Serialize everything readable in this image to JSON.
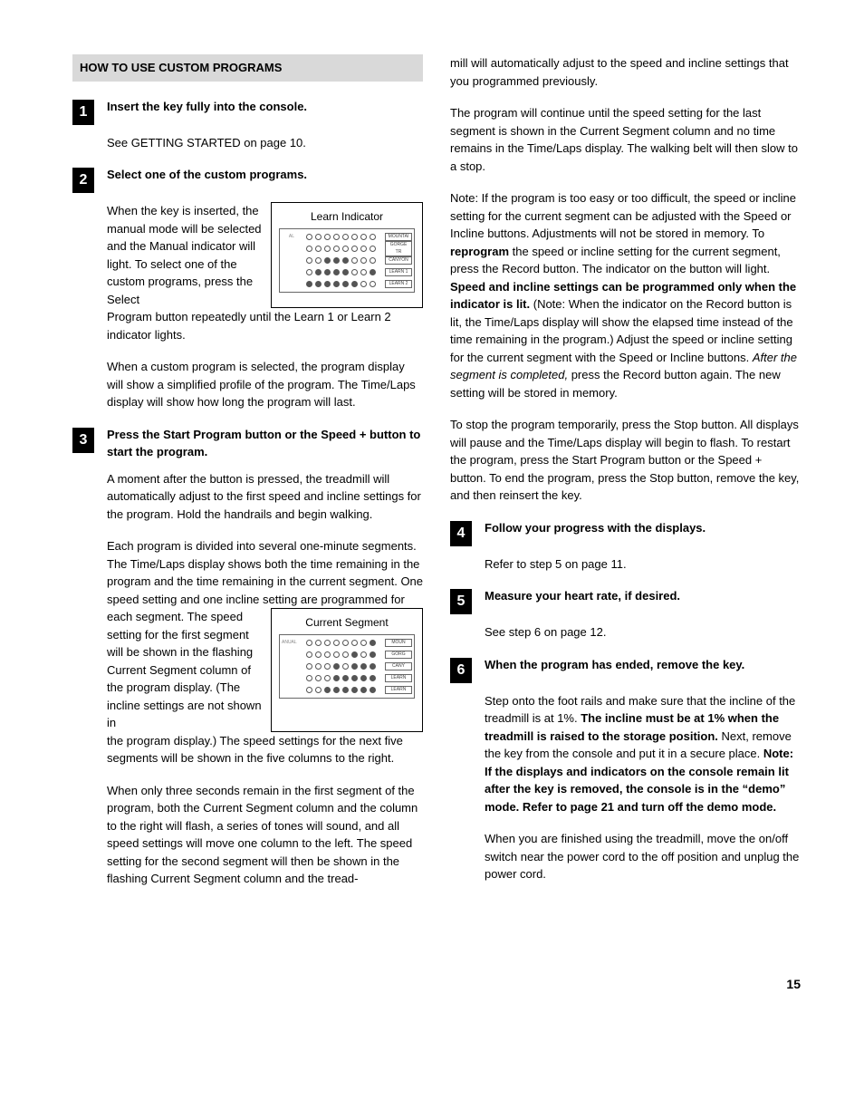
{
  "header": "HOW TO USE CUSTOM PROGRAMS",
  "leftSteps": {
    "s1": {
      "num": "1",
      "title": "Insert the key fully into the console.",
      "p1": "See GETTING STARTED on page 10."
    },
    "s2": {
      "num": "2",
      "title": "Select one of the custom programs.",
      "sideText": "When the key is inserted, the manual mode will be selected and the Manual indicator will light. To select one of the custom programs, press the Select",
      "restP": "Program button repeatedly until the Learn 1 or Learn 2 indicator lights.",
      "p2": "When a custom program is selected, the program display will show a simplified profile of the program. The Time/Laps display will show how long the program will last.",
      "figLabel": "Learn Indicator",
      "figLeft": "AL",
      "figRows": [
        {
          "dots": [
            0,
            0,
            0,
            0,
            0,
            0,
            0,
            0
          ],
          "right": "MOUNTAI"
        },
        {
          "dots": [
            0,
            0,
            0,
            0,
            0,
            0,
            0,
            0
          ],
          "right": "GORGE TR"
        },
        {
          "dots": [
            0,
            0,
            1,
            1,
            1,
            0,
            0,
            0
          ],
          "right": "CANYON"
        },
        {
          "dots": [
            0,
            1,
            1,
            1,
            1,
            0,
            0,
            1
          ],
          "right": "LEARN 1"
        },
        {
          "dots": [
            1,
            1,
            1,
            1,
            1,
            1,
            0,
            0
          ],
          "right": "LEARN 2"
        }
      ]
    },
    "s3": {
      "num": "3",
      "title": "Press the Start Program button or the Speed + button to start the program.",
      "p1": "A moment after the button is pressed, the treadmill will automatically adjust to the first speed and incline settings for the program. Hold the handrails and begin walking.",
      "p2a": "Each program is divided into several one-minute segments. The Time/Laps display shows both the time remaining in the program and the time remaining in the current segment. One speed setting and one incline setting are programmed for",
      "sideText": "each segment. The speed setting for the first segment will be shown in the flashing Current Segment column of the program display. (The incline settings are not shown in",
      "restP": "the program display.) The speed settings for the next five segments will be shown in the five columns to the right.",
      "p3": "When only three seconds remain in the first segment of the program, both the Current Segment column and the column to the right will flash, a series of tones will sound, and all speed settings will move one column to the left. The speed setting for the second segment will then be shown in the flashing Current Segment column and the tread-",
      "figLabel": "Current Segment",
      "figLeft": "ANUAL",
      "figRows": [
        {
          "dots": [
            0,
            0,
            0,
            0,
            0,
            0,
            0,
            1
          ],
          "right": "MOUN"
        },
        {
          "dots": [
            0,
            0,
            0,
            0,
            0,
            1,
            0,
            1
          ],
          "right": "GORG"
        },
        {
          "dots": [
            0,
            0,
            0,
            1,
            0,
            1,
            1,
            1
          ],
          "right": "CANY"
        },
        {
          "dots": [
            0,
            0,
            0,
            1,
            1,
            1,
            1,
            1
          ],
          "right": "LEARN"
        },
        {
          "dots": [
            0,
            0,
            1,
            1,
            1,
            1,
            1,
            1
          ],
          "right": "LEARN"
        }
      ]
    }
  },
  "rightCont": {
    "p1": "mill will automatically adjust to the speed and incline settings that you programmed previously.",
    "p2": "The program will continue until the speed setting for the last segment is shown in the Current Segment column and no time remains in the Time/Laps display. The walking belt will then slow to a stop.",
    "p3a": "Note: If the program is too easy or too difficult, the speed or incline setting for the current segment can be adjusted with the Speed or Incline buttons. Adjustments will not be stored in memory. To ",
    "p3b": "reprogram",
    "p3c": " the speed or incline setting for the current segment, press the Record button. The indicator on the button will light. ",
    "p3d": "Speed and incline settings can be programmed only when the indicator is lit.",
    "p3e": " (Note: When the indicator on the Record button is lit, the Time/Laps display will show the elapsed time instead of the time remaining in the program.) Adjust the speed or incline setting for the current segment with the Speed or Incline buttons. ",
    "p3f": "After the segment is completed,",
    "p3g": " press the Record button again. The new setting will be stored in memory.",
    "p4": "To stop the program temporarily, press the Stop button. All displays will pause and the Time/Laps display will begin to flash. To restart the program, press the Start Program button or the Speed + button. To end the program, press the Stop button, remove the key, and then reinsert the key."
  },
  "rightSteps": {
    "s4": {
      "num": "4",
      "title": "Follow your progress with the displays.",
      "p1": "Refer to step 5 on page 11."
    },
    "s5": {
      "num": "5",
      "title": "Measure your heart rate, if desired.",
      "p1": "See step 6 on page 12."
    },
    "s6": {
      "num": "6",
      "title": "When the program has ended, remove the key.",
      "p1a": "Step onto the foot rails and make sure that the incline of the treadmill is at 1%. ",
      "p1b": "The incline must be at 1% when the treadmill is raised to the storage position.",
      "p1c": " Next, remove the key from the console and put it in a secure place. ",
      "p1d": "Note: If the displays and indicators on the console remain lit after the key is removed, the console is in the “demo” mode. Refer to page 21 and turn off the demo mode.",
      "p2": "When you are finished using the treadmill, move the on/off switch near the power cord to the off position and unplug the power cord."
    }
  },
  "pageNum": "15"
}
